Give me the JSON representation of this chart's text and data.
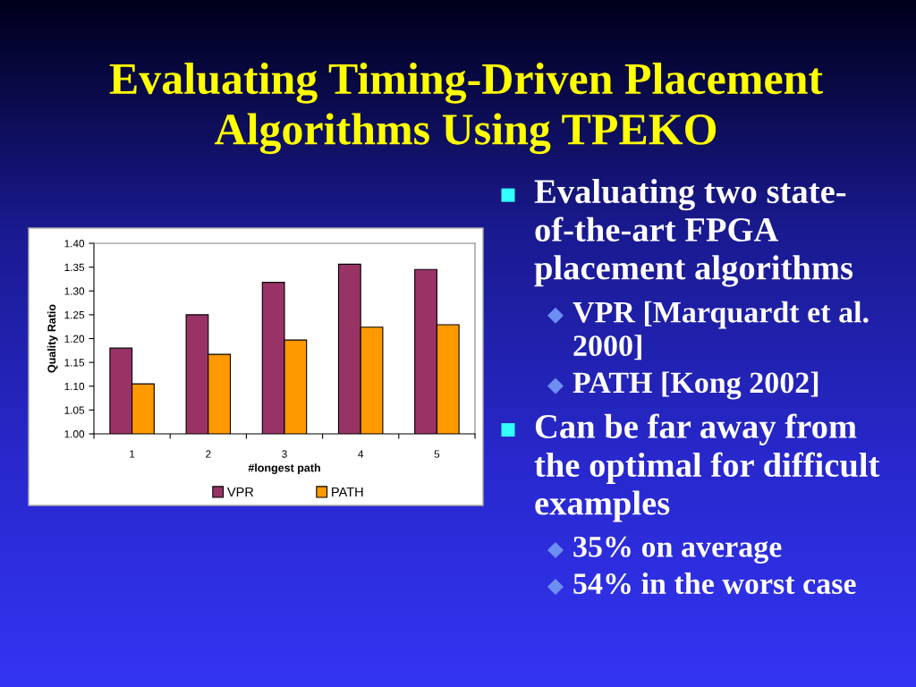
{
  "chart_data": {
    "type": "bar",
    "title": "Evaluating Timing-Driven Placement\nAlgorithms Using TPEKO",
    "annotations": [
      "Evaluating two state-\nof-the-art FPGA\nplacement algorithms",
      "VPR [Marquardt et al.\n2000]",
      "PATH [Kong 2002]",
      "Can be far away from\nthe optimal for difficult\nexamples",
      "35% on average",
      "54% in the worst case"
    ],
    "xlabel": "#longest path",
    "ylabel": "Quality Ratio",
    "categories": [
      "1",
      "2",
      "3",
      "4",
      "5"
    ],
    "series": [
      {
        "name": "VPR",
        "color": "#993366",
        "values": [
          1.18,
          1.25,
          1.318,
          1.356,
          1.345
        ]
      },
      {
        "name": "PATH",
        "color": "#ff9900",
        "values": [
          1.105,
          1.167,
          1.197,
          1.224,
          1.229
        ]
      }
    ],
    "ylim": [
      1.0,
      1.4
    ],
    "yticks": [
      {
        "value": 1.0,
        "label": "1.00"
      },
      {
        "value": 1.05,
        "label": "1.05"
      },
      {
        "value": 1.1,
        "label": "1.10"
      },
      {
        "value": 1.15,
        "label": "1.15"
      },
      {
        "value": 1.2,
        "label": "1.20"
      },
      {
        "value": 1.25,
        "label": "1.25"
      },
      {
        "value": 1.3,
        "label": "1.30"
      },
      {
        "value": 1.35,
        "label": "1.35"
      },
      {
        "value": 1.4,
        "label": "1.40"
      }
    ],
    "legend": "bottom"
  }
}
